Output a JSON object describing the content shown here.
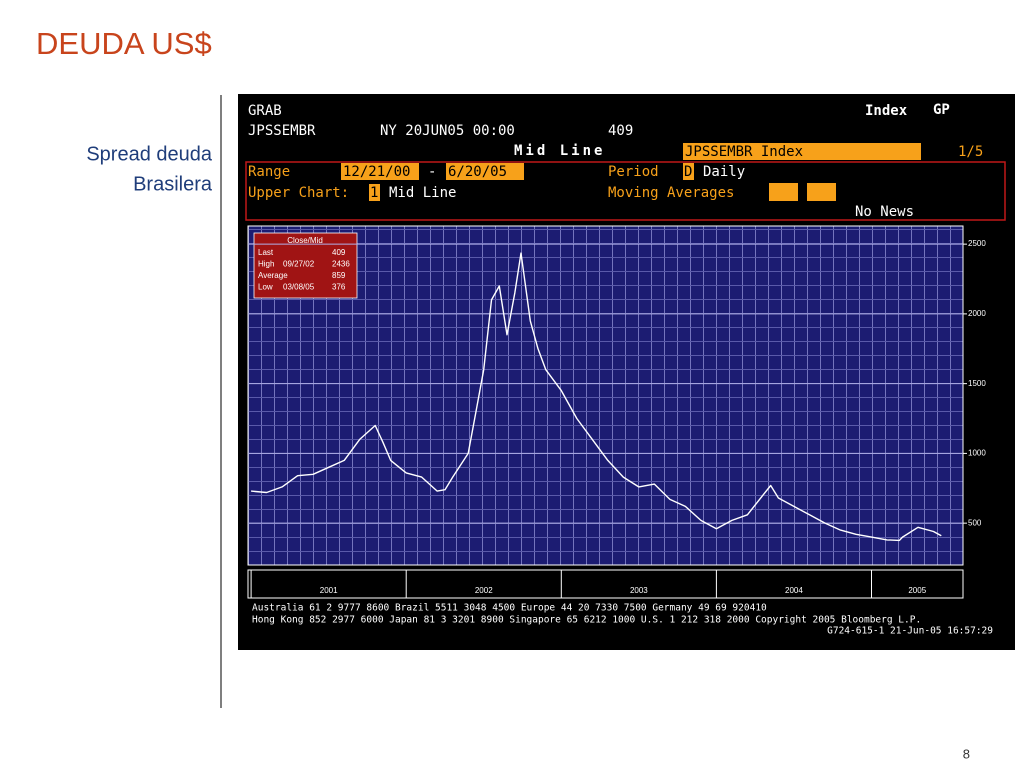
{
  "slide": {
    "title": "DEUDA US$",
    "subtitle": [
      "Spread deuda",
      "Brasilera"
    ],
    "page": "8"
  },
  "terminal": {
    "grab": "GRAB",
    "index": "Index",
    "gp": "GP",
    "ticker": "JPSSEMBR",
    "time": "NY 20JUN05 00:00",
    "last": "409",
    "mode": "Mid Line",
    "security": "JPSSEMBR Index",
    "pages": "1/5",
    "range_label": "Range",
    "range_start": "12/21/00",
    "range_dash": "-",
    "range_end": "6/20/05",
    "period_label": "Period",
    "period_code": "D",
    "period": "Daily",
    "upper_label": "Upper Chart:",
    "upper_code": "1",
    "upper": "Mid Line",
    "ma_label": "Moving Averages",
    "news": "No News",
    "stats_title": "Close/Mid",
    "stats": [
      [
        "Last",
        "",
        "409"
      ],
      [
        "High",
        "09/27/02",
        "2436"
      ],
      [
        "Average",
        "",
        "859"
      ],
      [
        "Low",
        "03/08/05",
        "376"
      ]
    ],
    "footer": [
      "Australia 61 2 9777 8600          Brazil 5511 3048 4500          Europe 44 20 7330 7500          Germany 49 69 920410",
      "Hong Kong 852 2977 6000 Japan 81 3 3201 8900 Singapore 65 6212 1000 U.S. 1 212 318 2000 Copyright 2005 Bloomberg L.P.",
      "G724-615-1 21-Jun-05 16:57:29"
    ]
  },
  "chart_data": {
    "type": "line",
    "color": "#ffffff",
    "x": [
      2001.0,
      2001.1,
      2001.2,
      2001.3,
      2001.4,
      2001.5,
      2001.6,
      2001.7,
      2001.8,
      2001.85,
      2001.9,
      2002.0,
      2002.1,
      2002.2,
      2002.25,
      2002.3,
      2002.4,
      2002.45,
      2002.5,
      2002.55,
      2002.6,
      2002.65,
      2002.7,
      2002.74,
      2002.8,
      2002.85,
      2002.9,
      2003.0,
      2003.1,
      2003.2,
      2003.3,
      2003.4,
      2003.5,
      2003.6,
      2003.7,
      2003.8,
      2003.9,
      2004.0,
      2004.1,
      2004.2,
      2004.3,
      2004.35,
      2004.4,
      2004.5,
      2004.6,
      2004.7,
      2004.8,
      2004.9,
      2005.0,
      2005.1,
      2005.18,
      2005.2,
      2005.3,
      2005.4,
      2005.45
    ],
    "values": [
      730,
      720,
      760,
      840,
      850,
      900,
      950,
      1100,
      1200,
      1080,
      950,
      860,
      830,
      730,
      740,
      830,
      1000,
      1300,
      1600,
      2100,
      2200,
      1850,
      2150,
      2436,
      1950,
      1750,
      1600,
      1450,
      1250,
      1100,
      950,
      830,
      760,
      780,
      670,
      620,
      520,
      460,
      520,
      560,
      700,
      770,
      680,
      620,
      560,
      500,
      450,
      420,
      400,
      380,
      376,
      400,
      470,
      440,
      409
    ],
    "xlim": [
      2000.98,
      2005.59
    ],
    "xticks": [
      2001,
      2002,
      2003,
      2004,
      2005
    ],
    "ylim": [
      200,
      2630
    ],
    "yticks": [
      500,
      1000,
      1500,
      2000,
      2500
    ],
    "grid": true
  }
}
